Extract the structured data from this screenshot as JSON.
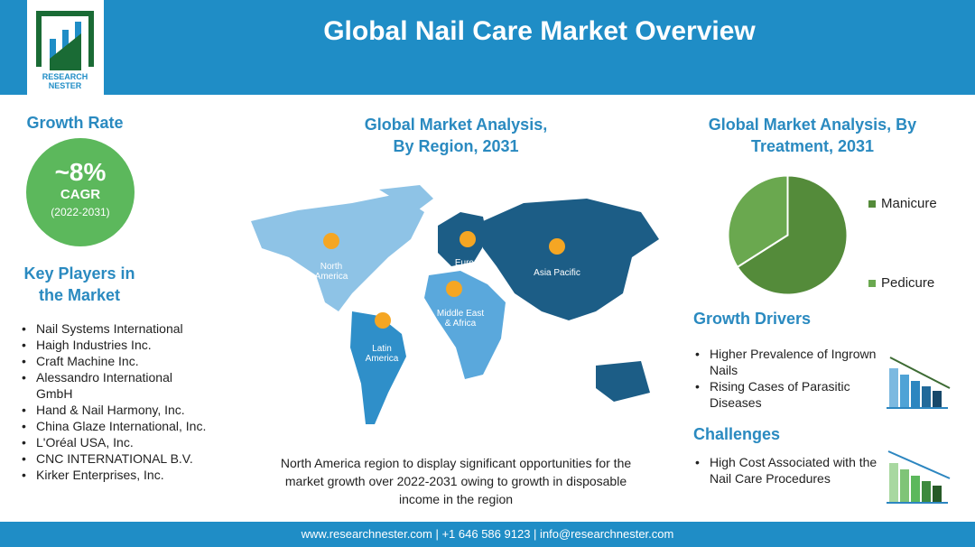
{
  "header": {
    "title": "Global Nail Care Market Overview",
    "logo_text": [
      "RESEARCH",
      "NESTER"
    ]
  },
  "growth": {
    "heading": "Growth Rate",
    "value": "~8%",
    "label": "CAGR",
    "period": "(2022-2031)"
  },
  "players": {
    "heading": "Key Players in the Market",
    "items": [
      "Nail Systems International",
      "Haigh Industries Inc.",
      "Craft Machine Inc.",
      "Alessandro International GmbH",
      "Hand & Nail Harmony, Inc.",
      "China Glaze International, Inc.",
      "L'Oréal USA, Inc.",
      "CNC INTERNATIONAL B.V.",
      "Kirker Enterprises, Inc."
    ]
  },
  "region": {
    "heading": "Global Market Analysis, By Region, 2031",
    "regions": [
      "North America",
      "Europe",
      "Asia Pacific",
      "Middle East & Africa",
      "Latin America"
    ],
    "note": "North America region to display significant opportunities for the market growth over 2022-2031  owing to growth in disposable income in the region"
  },
  "treatment": {
    "heading": "Global Market Analysis, By Treatment, 2031"
  },
  "chart_data": {
    "type": "pie",
    "title": "Global Market Analysis, By Treatment, 2031",
    "legend_position": "right",
    "categories": [
      "Manicure",
      "Pedicure"
    ],
    "values": [
      66,
      34
    ],
    "colors": [
      "#548b3a",
      "#6aa84f"
    ]
  },
  "drivers": {
    "heading": "Growth Drivers",
    "items": [
      "Higher Prevalence of Ingrown Nails",
      "Rising Cases of Parasitic Diseases"
    ]
  },
  "challenges": {
    "heading": "Challenges",
    "items": [
      "High Cost Associated with the Nail Care Procedures"
    ]
  },
  "footer": {
    "text": "www.researchnester.com  | +1 646 586 9123 | info@researchnester.com"
  }
}
